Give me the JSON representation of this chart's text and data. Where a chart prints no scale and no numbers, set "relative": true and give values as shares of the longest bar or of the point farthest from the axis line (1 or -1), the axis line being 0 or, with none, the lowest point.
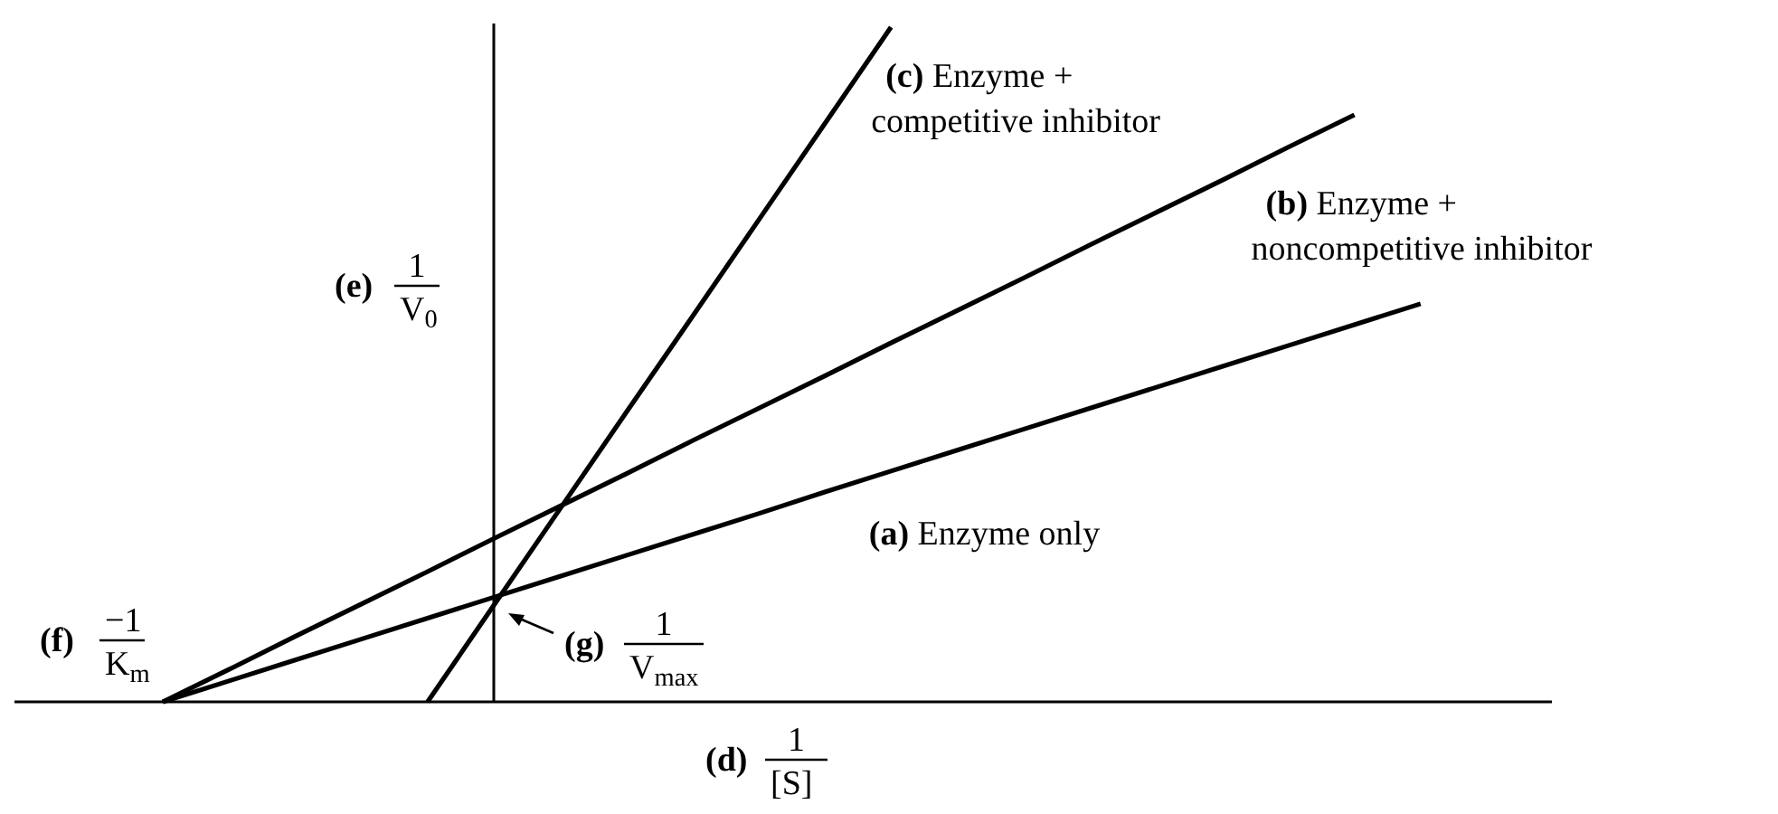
{
  "chart_data": {
    "type": "line",
    "relative": true,
    "xlabel": "(d) 1/[S]",
    "ylabel": "(e) 1/V$_{0}$",
    "categories": [
      null,
      null,
      null,
      null,
      null,
      null,
      null,
      null,
      null,
      null,
      null,
      null,
      null,
      null,
      null,
      null,
      null,
      null,
      null,
      null
    ],
    "series": [
      {
        "name": "(a) Enzyme only",
        "color": "#000000",
        "values": [
          0,
          0.031,
          0.062,
          0.093,
          0.124,
          0.155,
          0.186,
          0.217,
          0.248,
          0.279,
          0.311,
          0.342,
          0.373,
          0.404,
          0.435,
          0.466,
          0.497,
          0.528,
          0.559,
          0.59
        ]
      },
      {
        "name": "(b) Enzyme + noncompetitive inhibitor",
        "color": "#000000",
        "values": [
          0,
          0.048,
          0.097,
          0.145,
          0.193,
          0.242,
          0.29,
          0.338,
          0.387,
          0.435,
          0.483,
          0.532,
          0.58,
          0.628,
          0.677,
          0.725,
          0.773,
          0.822,
          0.87,
          null
        ]
      },
      {
        "name": "(c) Enzyme + competitive inhibitor",
        "color": "#000000",
        "values": [
          null,
          null,
          null,
          null,
          0,
          0.143,
          0.286,
          0.429,
          0.571,
          0.714,
          0.857,
          1,
          null,
          null,
          null,
          null,
          null,
          null,
          null,
          null
        ]
      }
    ],
    "annotations": [
      "(f) −1/K$_{m}$",
      "(g) 1/V$_{max}$"
    ],
    "legend": false,
    "grid": false,
    "marker": "none",
    "line_style": "solid"
  }
}
